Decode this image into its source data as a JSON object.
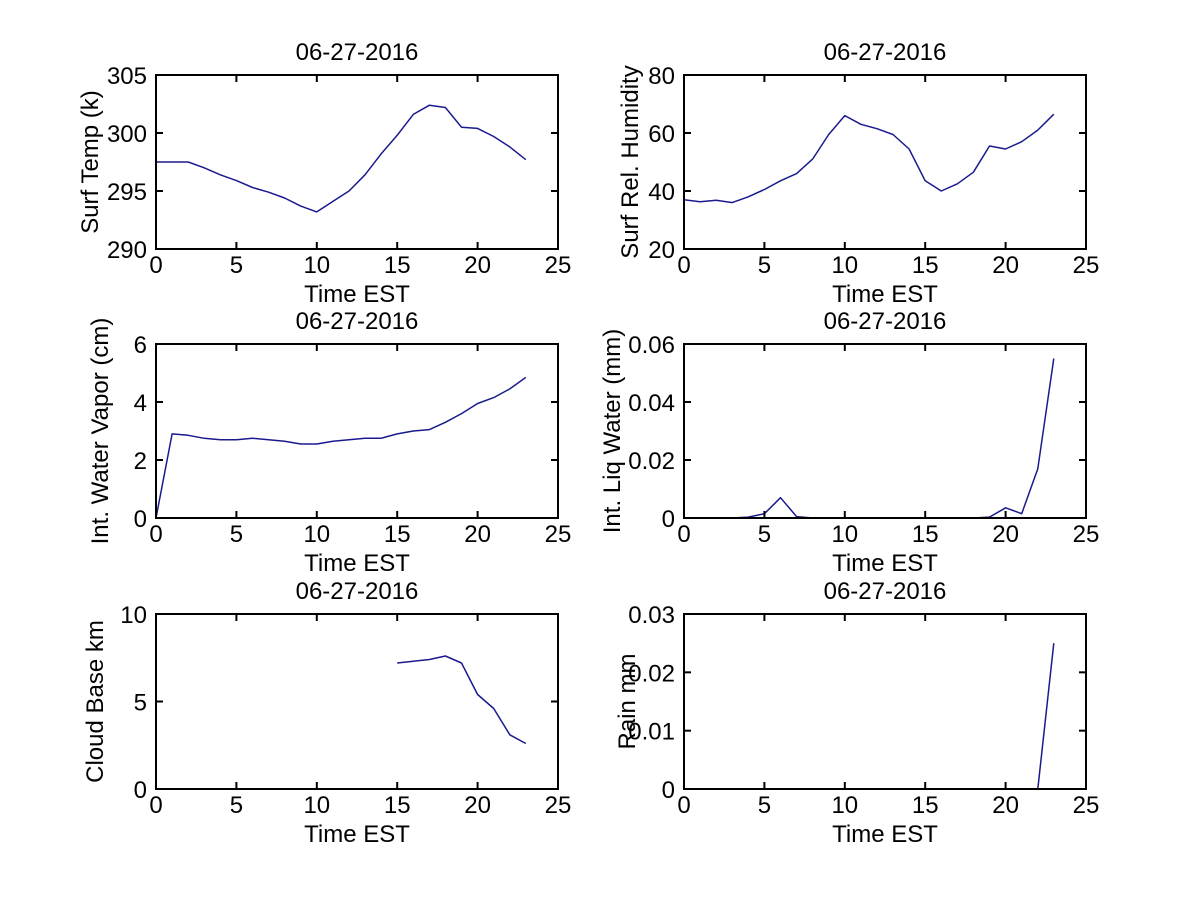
{
  "figure": {
    "background": "#ffffff",
    "axis_color": "#000000",
    "line_color": "#1a1a8f",
    "text_color": "#000000"
  },
  "chart_data": [
    {
      "id": "surf-temp",
      "type": "line",
      "title": "06-27-2016",
      "xlabel": "Time EST",
      "ylabel": "Surf Temp (k)",
      "xlim": [
        0,
        25
      ],
      "ylim": [
        290,
        305
      ],
      "grid": false,
      "legend": "none",
      "xticks": {
        "values": [
          0,
          5,
          10,
          15,
          20,
          25
        ],
        "labels": [
          "0",
          "5",
          "10",
          "15",
          "20",
          "25"
        ]
      },
      "yticks": {
        "values": [
          290,
          295,
          300,
          305
        ],
        "labels": [
          "290",
          "295",
          "300",
          "305"
        ]
      },
      "x": [
        0,
        1,
        2,
        3,
        4,
        5,
        6,
        7,
        8,
        9,
        10,
        11,
        12,
        13,
        14,
        15,
        16,
        17,
        18,
        19,
        20,
        21,
        22,
        23
      ],
      "y": [
        297.5,
        297.5,
        297.5,
        297.0,
        296.4,
        295.9,
        295.3,
        294.9,
        294.4,
        293.7,
        293.2,
        294.1,
        295.0,
        296.4,
        298.2,
        299.8,
        301.6,
        302.4,
        302.2,
        300.5,
        300.4,
        299.7,
        298.8,
        297.7
      ]
    },
    {
      "id": "surf-rel-humidity",
      "type": "line",
      "title": "06-27-2016",
      "xlabel": "Time EST",
      "ylabel": "Surf Rel. Humidity",
      "xlim": [
        0,
        25
      ],
      "ylim": [
        20,
        80
      ],
      "grid": false,
      "legend": "none",
      "xticks": {
        "values": [
          0,
          5,
          10,
          15,
          20,
          25
        ],
        "labels": [
          "0",
          "5",
          "10",
          "15",
          "20",
          "25"
        ]
      },
      "yticks": {
        "values": [
          20,
          40,
          60,
          80
        ],
        "labels": [
          "20",
          "40",
          "60",
          "80"
        ]
      },
      "x": [
        0,
        1,
        2,
        3,
        4,
        5,
        6,
        7,
        8,
        9,
        10,
        11,
        12,
        13,
        14,
        15,
        16,
        17,
        18,
        19,
        20,
        21,
        22,
        23
      ],
      "y": [
        37,
        36.3,
        36.8,
        36,
        38,
        40.5,
        43.5,
        46,
        51,
        59.5,
        66,
        63,
        61.5,
        59.5,
        54.5,
        43.5,
        40,
        42.5,
        46.5,
        55.5,
        54.5,
        57,
        61,
        66.5
      ]
    },
    {
      "id": "int-water-vapor",
      "type": "line",
      "title": "06-27-2016",
      "xlabel": "Time EST",
      "ylabel": "Int. Water Vapor (cm)",
      "xlim": [
        0,
        25
      ],
      "ylim": [
        0,
        6
      ],
      "grid": false,
      "legend": "none",
      "xticks": {
        "values": [
          0,
          5,
          10,
          15,
          20,
          25
        ],
        "labels": [
          "0",
          "5",
          "10",
          "15",
          "20",
          "25"
        ]
      },
      "yticks": {
        "values": [
          0,
          2,
          4,
          6
        ],
        "labels": [
          "0",
          "2",
          "4",
          "6"
        ]
      },
      "x": [
        0,
        1,
        2,
        3,
        4,
        5,
        6,
        7,
        8,
        9,
        10,
        11,
        12,
        13,
        14,
        15,
        16,
        17,
        18,
        19,
        20,
        21,
        22,
        23
      ],
      "y": [
        0,
        2.9,
        2.85,
        2.75,
        2.7,
        2.7,
        2.75,
        2.7,
        2.65,
        2.55,
        2.55,
        2.65,
        2.7,
        2.75,
        2.75,
        2.9,
        3.0,
        3.05,
        3.3,
        3.6,
        3.95,
        4.15,
        4.45,
        4.85
      ]
    },
    {
      "id": "int-liq-water",
      "type": "line",
      "title": "06-27-2016",
      "xlabel": "Time EST",
      "ylabel": "Int. Liq Water (mm)",
      "xlim": [
        0,
        25
      ],
      "ylim": [
        0,
        0.06
      ],
      "grid": false,
      "legend": "none",
      "xticks": {
        "values": [
          0,
          5,
          10,
          15,
          20,
          25
        ],
        "labels": [
          "0",
          "5",
          "10",
          "15",
          "20",
          "25"
        ]
      },
      "yticks": {
        "values": [
          0,
          0.02,
          0.04,
          0.06
        ],
        "labels": [
          "0",
          "0.02",
          "0.04",
          "0.06"
        ]
      },
      "x": [
        0,
        1,
        2,
        3,
        4,
        5,
        6,
        7,
        8,
        9,
        10,
        11,
        12,
        13,
        14,
        15,
        16,
        17,
        18,
        19,
        20,
        21,
        22,
        23
      ],
      "y": [
        0,
        0,
        0,
        0,
        0.0003,
        0.0015,
        0.007,
        0.0005,
        0,
        0,
        0,
        0,
        0,
        0,
        0,
        0,
        0,
        0,
        0,
        0.0003,
        0.0035,
        0.0015,
        0.017,
        0.055
      ]
    },
    {
      "id": "cloud-base",
      "type": "line",
      "title": "06-27-2016",
      "xlabel": "Time EST",
      "ylabel": "Cloud Base km",
      "xlim": [
        0,
        25
      ],
      "ylim": [
        0,
        10
      ],
      "grid": false,
      "legend": "none",
      "xticks": {
        "values": [
          0,
          5,
          10,
          15,
          20,
          25
        ],
        "labels": [
          "0",
          "5",
          "10",
          "15",
          "20",
          "25"
        ]
      },
      "yticks": {
        "values": [
          0,
          5,
          10
        ],
        "labels": [
          "0",
          "5",
          "10"
        ]
      },
      "x": [
        15,
        16,
        17,
        18,
        19,
        20,
        21,
        22,
        23
      ],
      "y": [
        7.2,
        7.3,
        7.4,
        7.6,
        7.2,
        5.4,
        4.6,
        3.1,
        2.6
      ]
    },
    {
      "id": "rain",
      "type": "line",
      "title": "06-27-2016",
      "xlabel": "Time EST",
      "ylabel": "Rain mm",
      "xlim": [
        0,
        25
      ],
      "ylim": [
        0,
        0.03
      ],
      "grid": false,
      "legend": "none",
      "xticks": {
        "values": [
          0,
          5,
          10,
          15,
          20,
          25
        ],
        "labels": [
          "0",
          "5",
          "10",
          "15",
          "20",
          "25"
        ]
      },
      "yticks": {
        "values": [
          0,
          0.01,
          0.02,
          0.03
        ],
        "labels": [
          "0",
          "0.01",
          "0.02",
          "0.03"
        ]
      },
      "x": [
        22,
        23
      ],
      "y": [
        0,
        0.025
      ]
    }
  ]
}
